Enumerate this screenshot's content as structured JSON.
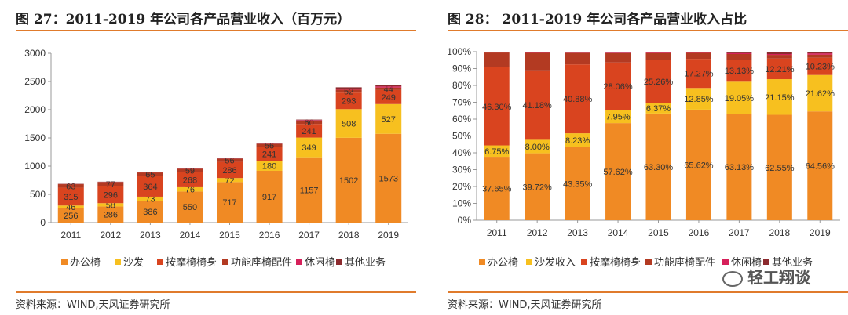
{
  "left_panel": {
    "title": "图 27：2011-2019 年公司各产品营业收入（百万元）",
    "source": "资料来源：WIND,天风证券研究所"
  },
  "right_panel": {
    "title": "图 28：  2011-2019 年公司各产品营业收入占比",
    "source": "资料来源：WIND,天风证券研究所"
  },
  "watermark": "轻工翔谈",
  "chart_data": [
    {
      "type": "bar",
      "stacked": true,
      "categories": [
        "2011",
        "2012",
        "2013",
        "2014",
        "2015",
        "2016",
        "2017",
        "2018",
        "2019"
      ],
      "ylim": [
        0,
        3000
      ],
      "yticks": [
        "0",
        "500",
        "1000",
        "1500",
        "2000",
        "2500",
        "3000"
      ],
      "legend_position": "bottom",
      "series": [
        {
          "name": "办公椅",
          "color": "#f08a24",
          "values": [
            256,
            286,
            386,
            550,
            717,
            917,
            1157,
            1502,
            1573
          ],
          "labels": [
            "256",
            "286",
            "386",
            "550",
            "717",
            "917",
            "1157",
            "1502",
            "1573"
          ]
        },
        {
          "name": "沙发",
          "color": "#f7c01f",
          "values": [
            46,
            58,
            73,
            76,
            72,
            180,
            349,
            508,
            527
          ],
          "labels": [
            "46",
            "58",
            "73",
            "76",
            "72",
            "180",
            "349",
            "508",
            "527"
          ]
        },
        {
          "name": "按摩椅椅身",
          "color": "#d9441f",
          "values": [
            315,
            296,
            364,
            268,
            286,
            241,
            241,
            293,
            249
          ],
          "labels": [
            "315",
            "296",
            "364",
            "268",
            "286",
            "241",
            "241",
            "293",
            "249"
          ]
        },
        {
          "name": "功能座椅配件",
          "color": "#b33a22",
          "values": [
            63,
            77,
            65,
            59,
            56,
            56,
            60,
            52,
            44
          ],
          "labels": [
            "63",
            "77",
            "65",
            "59",
            "56",
            "56",
            "60",
            "52",
            "44"
          ]
        },
        {
          "name": "休闲椅",
          "color": "#d6205a",
          "values": [
            2,
            2,
            2,
            3,
            3,
            3,
            8,
            12,
            20
          ],
          "labels": [
            "",
            "",
            "",
            "",
            "",
            "",
            "",
            "",
            ""
          ]
        },
        {
          "name": "其他业务",
          "color": "#8c2a2e",
          "values": [
            5,
            5,
            5,
            5,
            5,
            5,
            10,
            30,
            25
          ],
          "labels": [
            "",
            "",
            "",
            "",
            "",
            "",
            "",
            "",
            ""
          ]
        }
      ]
    },
    {
      "type": "bar",
      "stacked": true,
      "categories": [
        "2011",
        "2012",
        "2013",
        "2014",
        "2015",
        "2016",
        "2017",
        "2018",
        "2019"
      ],
      "ylim": [
        0,
        100
      ],
      "yticks": [
        "0%",
        "10%",
        "20%",
        "30%",
        "40%",
        "50%",
        "60%",
        "70%",
        "80%",
        "90%",
        "100%"
      ],
      "legend_position": "bottom",
      "series": [
        {
          "name": "办公椅",
          "color": "#f08a24",
          "values": [
            37.65,
            39.72,
            43.35,
            57.62,
            63.3,
            65.62,
            63.13,
            62.55,
            64.56
          ],
          "labels": [
            "37.65%",
            "39.72%",
            "43.35%",
            "57.62%",
            "63.30%",
            "65.62%",
            "63.13%",
            "62.55%",
            "64.56%"
          ]
        },
        {
          "name": "沙发收入",
          "color": "#f7c01f",
          "values": [
            6.75,
            8.0,
            8.23,
            7.95,
            6.37,
            12.85,
            19.05,
            21.15,
            21.62
          ],
          "labels": [
            "6.75%",
            "8.00%",
            "8.23%",
            "7.95%",
            "6.37%",
            "12.85%",
            "19.05%",
            "21.15%",
            "21.62%"
          ]
        },
        {
          "name": "按摩椅椅身",
          "color": "#d9441f",
          "values": [
            46.3,
            41.18,
            40.88,
            28.06,
            25.26,
            17.27,
            13.13,
            12.21,
            10.23
          ],
          "labels": [
            "46.30%",
            "41.18%",
            "40.88%",
            "28.06%",
            "25.26%",
            "17.27%",
            "13.13%",
            "12.21%",
            "10.23%"
          ]
        },
        {
          "name": "功能座椅配件",
          "color": "#b33a22",
          "values": [
            8.8,
            10.4,
            6.8,
            5.5,
            4.3,
            3.6,
            3.3,
            2.2,
            1.8
          ],
          "labels": [
            "",
            "",
            "",
            "",
            "",
            "",
            "",
            "",
            ""
          ]
        },
        {
          "name": "休闲椅",
          "color": "#d6205a",
          "values": [
            0.2,
            0.2,
            0.2,
            0.3,
            0.3,
            0.2,
            0.5,
            0.5,
            0.8
          ],
          "labels": [
            "",
            "",
            "",
            "",
            "",
            "",
            "",
            "",
            ""
          ]
        },
        {
          "name": "其他业务",
          "color": "#8c2a2e",
          "values": [
            0.3,
            0.5,
            0.54,
            0.57,
            0.47,
            0.46,
            0.89,
            1.39,
            0.99
          ],
          "labels": [
            "",
            "",
            "",
            "",
            "",
            "",
            "",
            "",
            ""
          ]
        }
      ]
    }
  ]
}
